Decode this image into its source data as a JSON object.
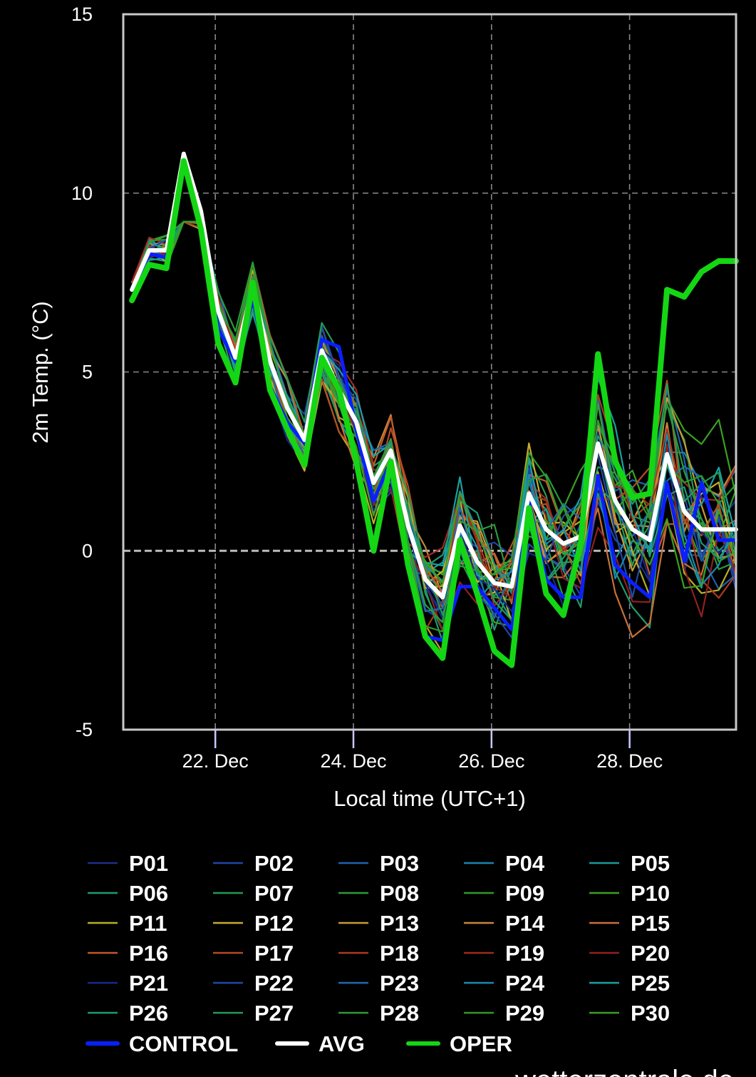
{
  "chart_data": {
    "type": "line",
    "title": "",
    "xlabel": "Local time (UTC+1)",
    "ylabel": "2m Temp. (°C)",
    "xlim": [
      "2023-12-20T16:00",
      "2023-12-29T13:00"
    ],
    "ylim": [
      -5,
      15
    ],
    "x_ticks": [
      "22. Dec",
      "24. Dec",
      "26. Dec",
      "28. Dec"
    ],
    "x_tick_dates": [
      "2023-12-22T00:00",
      "2023-12-24T00:00",
      "2023-12-26T00:00",
      "2023-12-28T00:00"
    ],
    "y_ticks": [
      "15",
      "10",
      "5",
      "0",
      "-5"
    ],
    "y_tick_values": [
      15,
      10,
      5,
      0,
      -5
    ],
    "grid": true,
    "legend_position": "bottom",
    "x": [
      "2023-12-20T19:00",
      "2023-12-21T01:00",
      "2023-12-21T07:00",
      "2023-12-21T13:00",
      "2023-12-21T19:00",
      "2023-12-22T01:00",
      "2023-12-22T07:00",
      "2023-12-22T13:00",
      "2023-12-22T19:00",
      "2023-12-23T01:00",
      "2023-12-23T07:00",
      "2023-12-23T13:00",
      "2023-12-23T19:00",
      "2023-12-24T01:00",
      "2023-12-24T07:00",
      "2023-12-24T13:00",
      "2023-12-24T19:00",
      "2023-12-25T01:00",
      "2023-12-25T07:00",
      "2023-12-25T13:00",
      "2023-12-25T19:00",
      "2023-12-26T01:00",
      "2023-12-26T07:00",
      "2023-12-26T13:00",
      "2023-12-26T19:00",
      "2023-12-27T01:00",
      "2023-12-27T07:00",
      "2023-12-27T13:00",
      "2023-12-27T19:00",
      "2023-12-28T01:00",
      "2023-12-28T07:00",
      "2023-12-28T13:00",
      "2023-12-28T19:00",
      "2023-12-29T01:00",
      "2023-12-29T07:00",
      "2023-12-29T13:00"
    ],
    "series": [
      {
        "name": "CONTROL",
        "color": "#0a1fff",
        "width": 5,
        "values": [
          7.3,
          8.3,
          8.2,
          10.9,
          9.4,
          6.2,
          5.3,
          7.1,
          4.6,
          3.6,
          3.0,
          5.9,
          5.7,
          3.4,
          1.4,
          2.5,
          -0.2,
          -2.4,
          -2.5,
          -1.0,
          -1.0,
          -1.6,
          -2.2,
          1.4,
          -0.8,
          -1.3,
          -1.3,
          2.1,
          -0.4,
          -0.9,
          -1.3,
          1.9,
          -0.3,
          1.9,
          0.3,
          0.3
        ]
      },
      {
        "name": "AVG",
        "color": "#ffffff",
        "width": 6,
        "values": [
          7.3,
          8.4,
          8.4,
          11.1,
          9.5,
          6.7,
          5.4,
          7.4,
          5.3,
          4.0,
          3.1,
          5.6,
          4.5,
          3.6,
          1.9,
          2.8,
          0.7,
          -0.8,
          -1.3,
          0.7,
          -0.3,
          -0.9,
          -1.0,
          1.6,
          0.6,
          0.2,
          0.4,
          3.0,
          1.4,
          0.6,
          0.3,
          2.7,
          1.1,
          0.6,
          0.6,
          0.6
        ]
      },
      {
        "name": "OPER",
        "color": "#14d614",
        "width": 8,
        "values": [
          7.0,
          8.0,
          7.9,
          10.9,
          9.0,
          5.8,
          4.7,
          7.5,
          4.5,
          3.4,
          2.4,
          5.4,
          4.5,
          2.5,
          0.0,
          2.5,
          -0.4,
          -2.4,
          -3.0,
          0.3,
          -1.2,
          -2.8,
          -3.2,
          1.2,
          -1.2,
          -1.8,
          0.2,
          5.5,
          2.5,
          1.5,
          1.6,
          7.3,
          7.1,
          7.8,
          8.1,
          8.1
        ]
      }
    ],
    "members": [
      "P01",
      "P02",
      "P03",
      "P04",
      "P05",
      "P06",
      "P07",
      "P08",
      "P09",
      "P10",
      "P11",
      "P12",
      "P13",
      "P14",
      "P15",
      "P16",
      "P17",
      "P18",
      "P19",
      "P20",
      "P21",
      "P22",
      "P23",
      "P24",
      "P25",
      "P26",
      "P27",
      "P28",
      "P29",
      "P30"
    ],
    "member_colors": [
      "#1a2f8a",
      "#1f45a8",
      "#1f62b0",
      "#1a84b0",
      "#1a9a9a",
      "#1f9a6e",
      "#239a55",
      "#2a9a3c",
      "#2e9a2a",
      "#3aa022",
      "#b5b028",
      "#c8ab2e",
      "#c89a35",
      "#c8863a",
      "#c87038",
      "#c05a2a",
      "#b84a22",
      "#ac3a1e",
      "#9e2a20",
      "#902020",
      "#16298a",
      "#1f4aa8",
      "#1f6ab0",
      "#1a8ab0",
      "#1aa0a0",
      "#1f9a70",
      "#249a56",
      "#2a9a3c",
      "#2e9a2a",
      "#38a022"
    ],
    "legend_items": [
      "P01",
      "P02",
      "P03",
      "P04",
      "P05",
      "P06",
      "P07",
      "P08",
      "P09",
      "P10",
      "P11",
      "P12",
      "P13",
      "P14",
      "P15",
      "P16",
      "P17",
      "P18",
      "P19",
      "P20",
      "P21",
      "P22",
      "P23",
      "P24",
      "P25",
      "P26",
      "P27",
      "P28",
      "P29",
      "P30",
      "CONTROL",
      "AVG",
      "OPER"
    ],
    "colors": {
      "background": "#000000",
      "grid": "#888888",
      "frame": "#c8c8c8",
      "zero_line": "#bbbbbb"
    }
  },
  "credit": "wetterzentrale.de"
}
